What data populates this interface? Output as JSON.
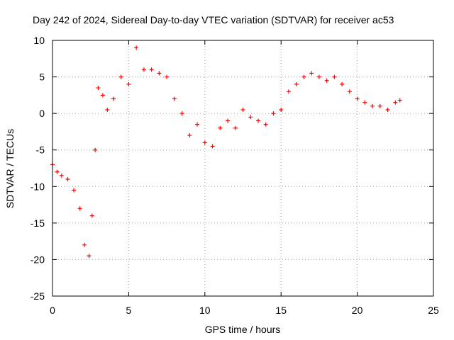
{
  "chart_data": {
    "type": "scatter",
    "title": "Day 242 of 2024, Sidereal Day-to-day VTEC variation (SDTVAR) for receiver ac53",
    "xlabel": "GPS time / hours",
    "ylabel": "SDTVAR / TECUs",
    "xlim": [
      0,
      25
    ],
    "ylim": [
      -25,
      10
    ],
    "xticks": [
      0,
      5,
      10,
      15,
      20,
      25
    ],
    "xtick_labels": [
      "0",
      "5",
      "10",
      "15",
      "20",
      "25"
    ],
    "yticks": [
      -25,
      -20,
      -15,
      -10,
      -5,
      0,
      5,
      10
    ],
    "ytick_labels": [
      "-25",
      "-20",
      "-15",
      "-10",
      "-5",
      "0",
      "5",
      "10"
    ],
    "grid": true,
    "marker": "+",
    "series": [
      {
        "name": "SDTVAR",
        "color": "#ff0000",
        "x": [
          0.0,
          0.3,
          0.6,
          1.0,
          1.4,
          1.8,
          2.1,
          2.4,
          2.6,
          2.8,
          3.0,
          3.3,
          3.6,
          4.0,
          4.5,
          5.0,
          5.5,
          6.0,
          6.5,
          7.0,
          7.5,
          8.0,
          8.5,
          9.0,
          9.5,
          10.0,
          10.5,
          11.0,
          11.5,
          12.0,
          12.5,
          13.0,
          13.5,
          14.0,
          14.5,
          15.0,
          15.5,
          16.0,
          16.5,
          17.0,
          17.5,
          18.0,
          18.5,
          19.0,
          19.5,
          20.0,
          20.5,
          21.0,
          21.5,
          22.0,
          22.5,
          22.8
        ],
        "y": [
          -7.0,
          -8.0,
          -8.5,
          -9.0,
          -10.5,
          -13.0,
          -18.0,
          -19.5,
          -14.0,
          -5.0,
          3.5,
          2.5,
          0.5,
          2.0,
          5.0,
          4.0,
          9.0,
          6.0,
          6.0,
          5.5,
          5.0,
          2.0,
          0.0,
          -3.0,
          -1.5,
          -4.0,
          -4.5,
          -2.0,
          -1.0,
          -2.0,
          0.5,
          -0.5,
          -1.0,
          -1.5,
          0.0,
          0.5,
          3.0,
          4.0,
          5.0,
          5.5,
          5.0,
          4.5,
          5.0,
          4.0,
          3.0,
          2.0,
          1.5,
          1.0,
          1.0,
          0.5,
          1.5,
          1.8
        ]
      }
    ]
  }
}
